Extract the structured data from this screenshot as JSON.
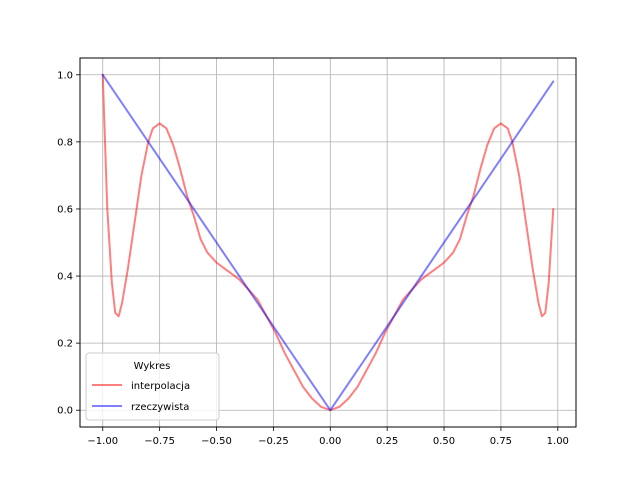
{
  "chart_data": {
    "type": "line",
    "xlim": [
      -1.1,
      1.08
    ],
    "ylim": [
      -0.05,
      1.05
    ],
    "grid": true,
    "x_ticks": [
      -1.0,
      -0.75,
      -0.5,
      -0.25,
      0.0,
      0.25,
      0.5,
      0.75,
      1.0
    ],
    "x_tick_labels": [
      "−1.00",
      "−0.75",
      "−0.50",
      "−0.25",
      "0.00",
      "0.25",
      "0.50",
      "0.75",
      "1.00"
    ],
    "y_ticks": [
      0.0,
      0.2,
      0.4,
      0.6,
      0.8,
      1.0
    ],
    "y_tick_labels": [
      "0.0",
      "0.2",
      "0.4",
      "0.6",
      "0.8",
      "1.0"
    ],
    "legend": {
      "title": "Wykres",
      "placement": "lower-left"
    },
    "series": [
      {
        "name": "interpolacja",
        "color": "#ff0000",
        "opacity": 0.5,
        "points": [
          [
            -1.0,
            1.0
          ],
          [
            -0.98,
            0.6
          ],
          [
            -0.96,
            0.38
          ],
          [
            -0.945,
            0.29
          ],
          [
            -0.93,
            0.28
          ],
          [
            -0.915,
            0.32
          ],
          [
            -0.89,
            0.42
          ],
          [
            -0.86,
            0.56
          ],
          [
            -0.83,
            0.7
          ],
          [
            -0.8,
            0.8
          ],
          [
            -0.78,
            0.84
          ],
          [
            -0.75,
            0.855
          ],
          [
            -0.72,
            0.84
          ],
          [
            -0.69,
            0.79
          ],
          [
            -0.66,
            0.72
          ],
          [
            -0.63,
            0.64
          ],
          [
            -0.6,
            0.58
          ],
          [
            -0.57,
            0.51
          ],
          [
            -0.54,
            0.47
          ],
          [
            -0.5,
            0.44
          ],
          [
            -0.47,
            0.425
          ],
          [
            -0.44,
            0.41
          ],
          [
            -0.4,
            0.39
          ],
          [
            -0.36,
            0.36
          ],
          [
            -0.32,
            0.33
          ],
          [
            -0.28,
            0.28
          ],
          [
            -0.24,
            0.23
          ],
          [
            -0.2,
            0.17
          ],
          [
            -0.16,
            0.12
          ],
          [
            -0.12,
            0.07
          ],
          [
            -0.08,
            0.035
          ],
          [
            -0.04,
            0.01
          ],
          [
            0.0,
            0.0
          ],
          [
            0.04,
            0.01
          ],
          [
            0.08,
            0.035
          ],
          [
            0.12,
            0.07
          ],
          [
            0.16,
            0.12
          ],
          [
            0.2,
            0.17
          ],
          [
            0.24,
            0.23
          ],
          [
            0.28,
            0.28
          ],
          [
            0.32,
            0.33
          ],
          [
            0.36,
            0.36
          ],
          [
            0.4,
            0.39
          ],
          [
            0.44,
            0.41
          ],
          [
            0.47,
            0.425
          ],
          [
            0.5,
            0.44
          ],
          [
            0.54,
            0.47
          ],
          [
            0.57,
            0.51
          ],
          [
            0.6,
            0.58
          ],
          [
            0.63,
            0.64
          ],
          [
            0.66,
            0.72
          ],
          [
            0.69,
            0.79
          ],
          [
            0.72,
            0.84
          ],
          [
            0.75,
            0.855
          ],
          [
            0.78,
            0.84
          ],
          [
            0.8,
            0.8
          ],
          [
            0.83,
            0.7
          ],
          [
            0.86,
            0.56
          ],
          [
            0.89,
            0.42
          ],
          [
            0.915,
            0.32
          ],
          [
            0.93,
            0.28
          ],
          [
            0.945,
            0.29
          ],
          [
            0.96,
            0.38
          ],
          [
            0.98,
            0.6
          ]
        ]
      },
      {
        "name": "rzeczywista",
        "color": "#0000ff",
        "opacity": 0.5,
        "points": [
          [
            -1.0,
            1.0
          ],
          [
            0.0,
            0.0
          ],
          [
            0.98,
            0.98
          ]
        ]
      }
    ]
  }
}
